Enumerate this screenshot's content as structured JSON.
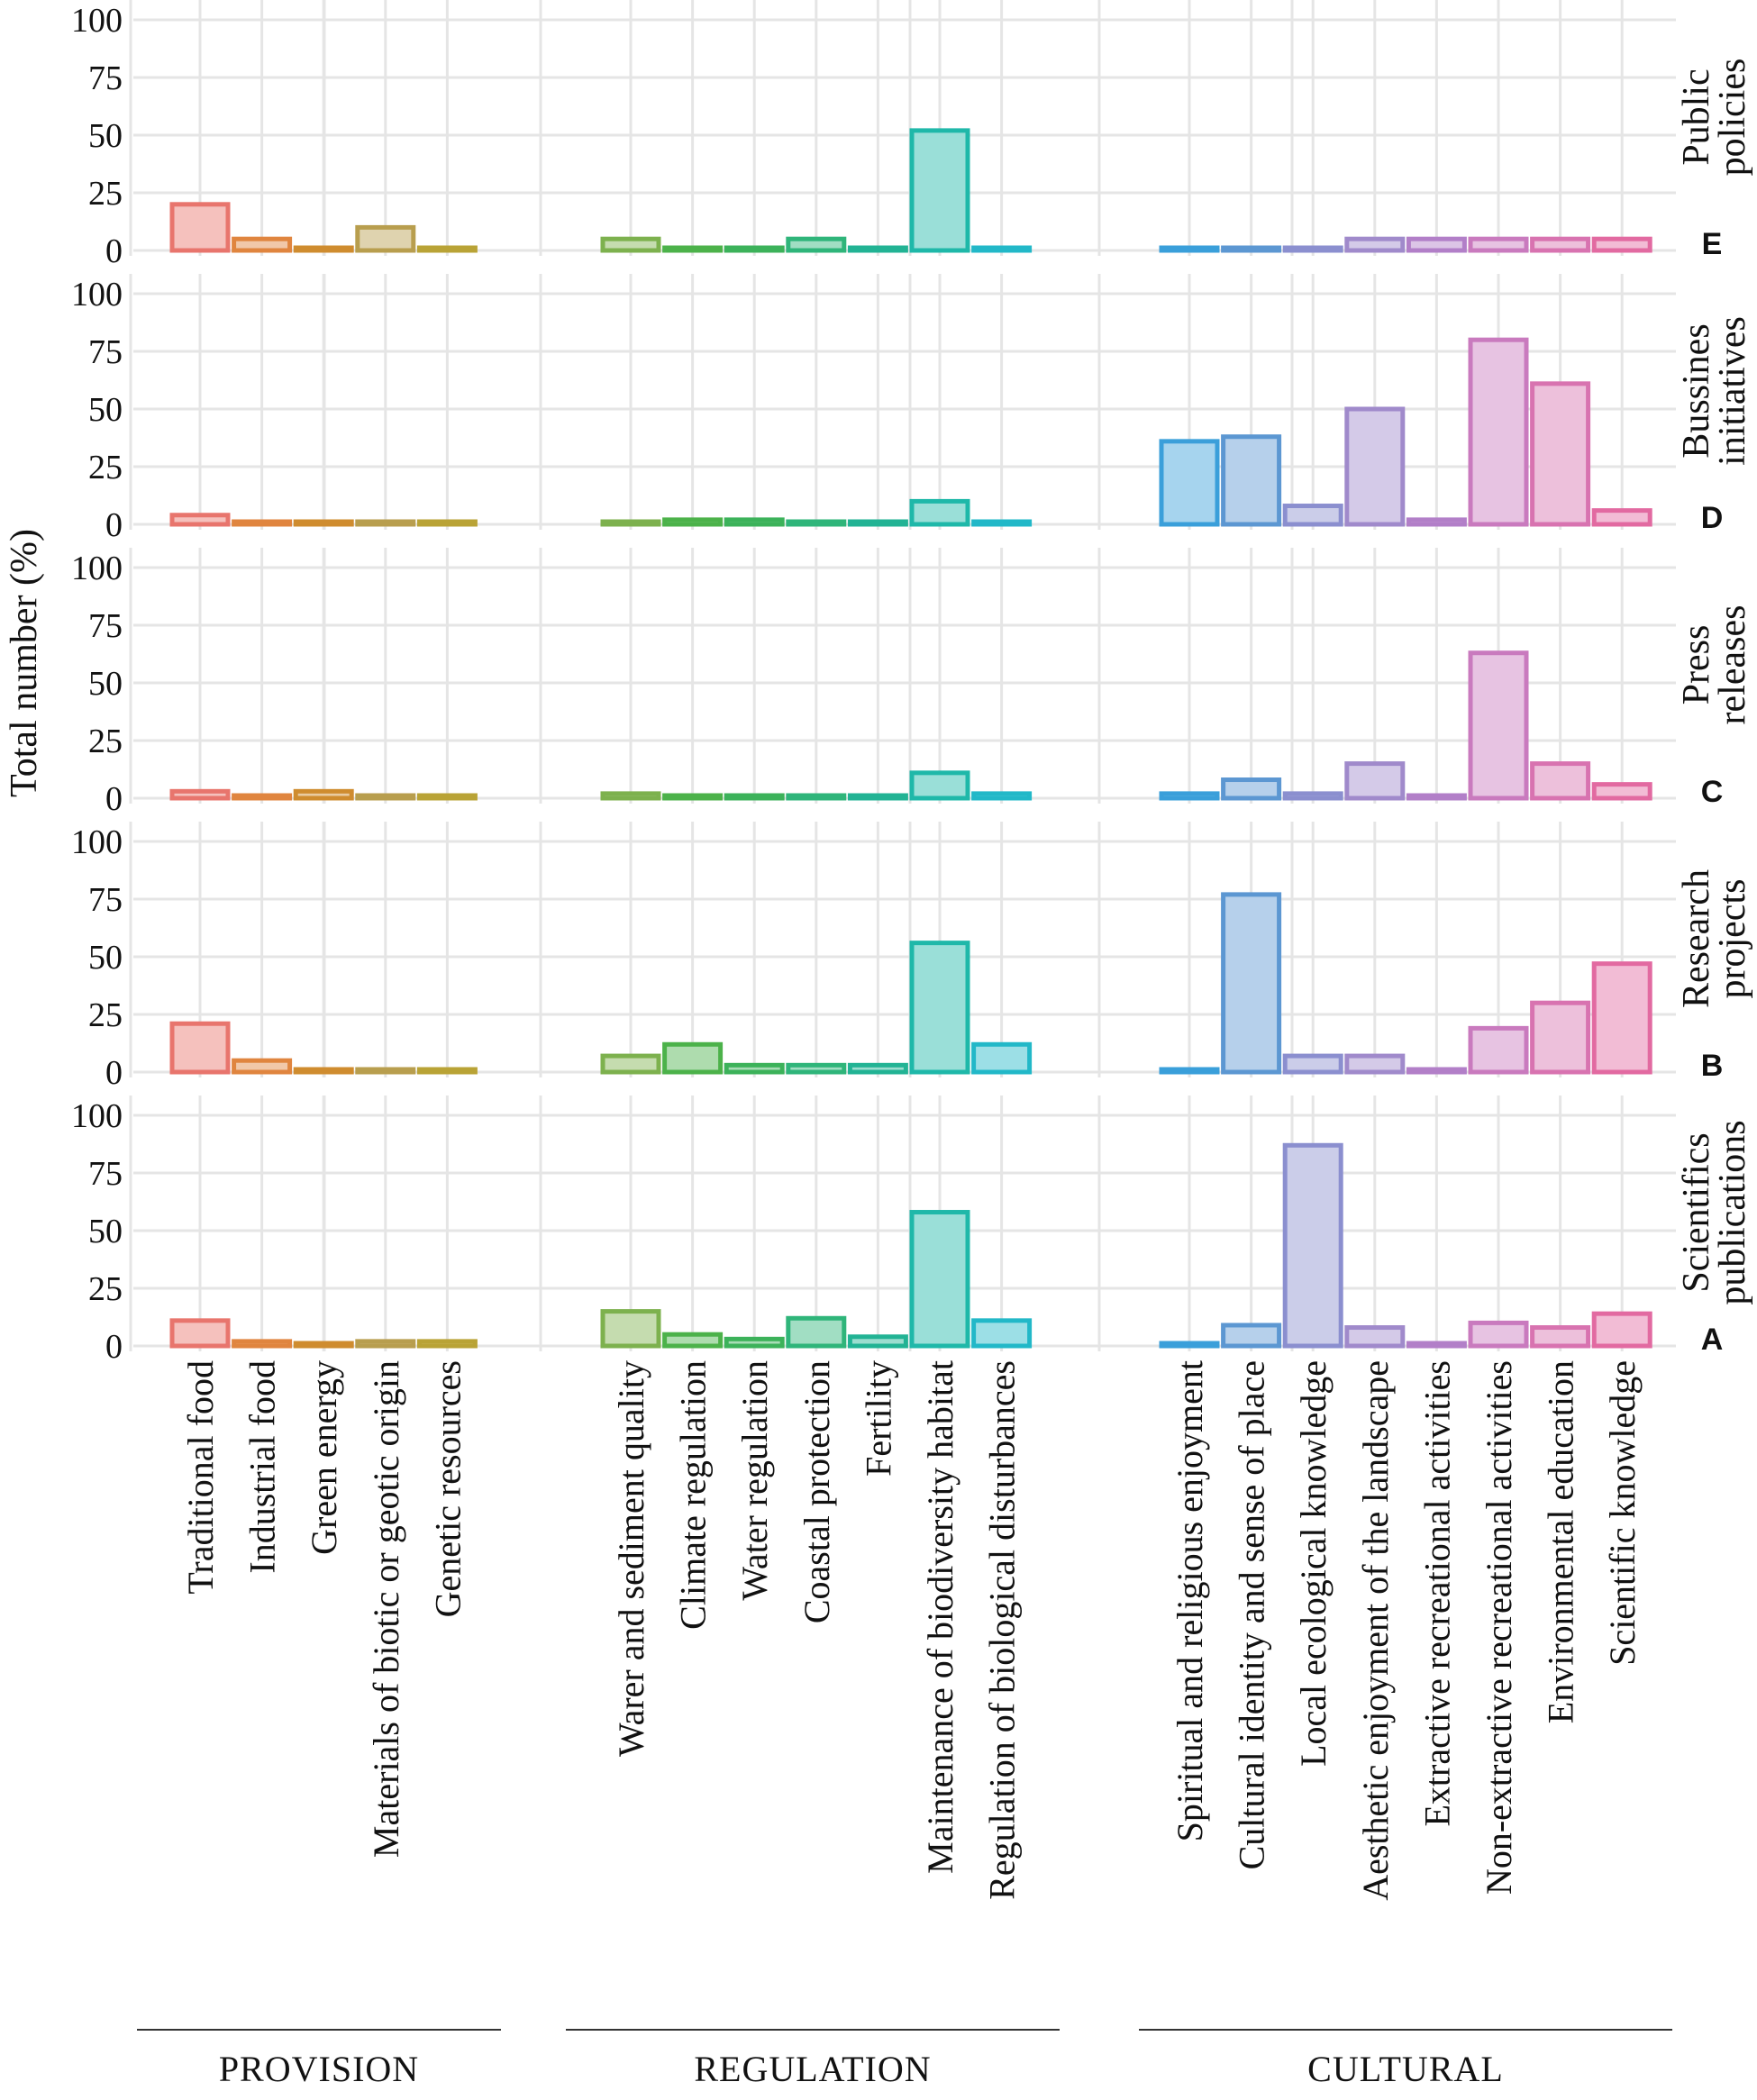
{
  "chart_data": {
    "type": "bar",
    "ylabel": "Total number (%)",
    "xlabel": "",
    "ylim": [
      0,
      100
    ],
    "yticks": [
      "0",
      "25",
      "50",
      "75",
      "100"
    ],
    "groups": [
      {
        "name": "PROVISION",
        "categories": [
          "Traditional food",
          "Industrial food",
          "Green energy",
          "Materials of biotic or geotic origin",
          "Genetic resources"
        ]
      },
      {
        "name": "REGULATION",
        "categories": [
          "Warer and sediment quality",
          "Climate regulation",
          "Water regulation",
          "Coastal protection",
          "Fertility",
          "Maintenance of biodiversity habitat",
          "Regulation of biological disturbances"
        ]
      },
      {
        "name": "CULTURAL",
        "categories": [
          "Spiritual and religious enjoyment",
          "Cultural identity and sense of place",
          "Local ecological knowledge",
          "Aesthetic enjoyment of the landscape",
          "Extractive recreational activities",
          "Non-extractive recreational activities",
          "Environmental education",
          "Scientific knowledge"
        ]
      }
    ],
    "colors": [
      "#E8756D",
      "#E0853F",
      "#CF8C2F",
      "#B89E4E",
      "#B9A336",
      "#7DB14E",
      "#4CB24A",
      "#3CB25A",
      "#2FB57A",
      "#22B394",
      "#1FB8A9",
      "#22B8C8",
      "#3A9FDA",
      "#5C97D2",
      "#8B8FCF",
      "#A08ACB",
      "#B27FC8",
      "#C97ABE",
      "#D873B0",
      "#E26AA1"
    ],
    "facets": [
      {
        "title_line1": "Public",
        "title_line2": "policies",
        "letter": "E",
        "values": [
          20,
          5,
          0,
          10,
          0,
          5,
          0,
          0,
          5,
          0,
          52,
          0,
          0,
          0,
          0,
          5,
          5,
          5,
          5,
          5
        ]
      },
      {
        "title_line1": "Bussines",
        "title_line2": "initiatives",
        "letter": "D",
        "values": [
          4,
          0,
          0,
          0,
          0,
          0,
          2,
          2,
          0,
          0,
          10,
          0,
          36,
          38,
          8,
          50,
          2,
          80,
          61,
          6
        ]
      },
      {
        "title_line1": "Press",
        "title_line2": "releases",
        "letter": "C",
        "values": [
          3,
          0,
          3,
          0,
          0,
          2,
          0,
          0,
          0,
          0,
          11,
          2,
          2,
          8,
          2,
          15,
          0,
          63,
          15,
          6
        ]
      },
      {
        "title_line1": "Research",
        "title_line2": "projects",
        "letter": "B",
        "values": [
          21,
          5,
          0,
          0,
          0,
          7,
          12,
          3,
          3,
          3,
          56,
          12,
          0,
          77,
          7,
          7,
          0,
          19,
          30,
          47
        ]
      },
      {
        "title_line1": "Scientifics",
        "title_line2": "publications",
        "letter": "A",
        "values": [
          11,
          2,
          0,
          2,
          2,
          15,
          5,
          3,
          12,
          4,
          58,
          11,
          0,
          9,
          87,
          8,
          1,
          10,
          8,
          14
        ]
      }
    ]
  }
}
